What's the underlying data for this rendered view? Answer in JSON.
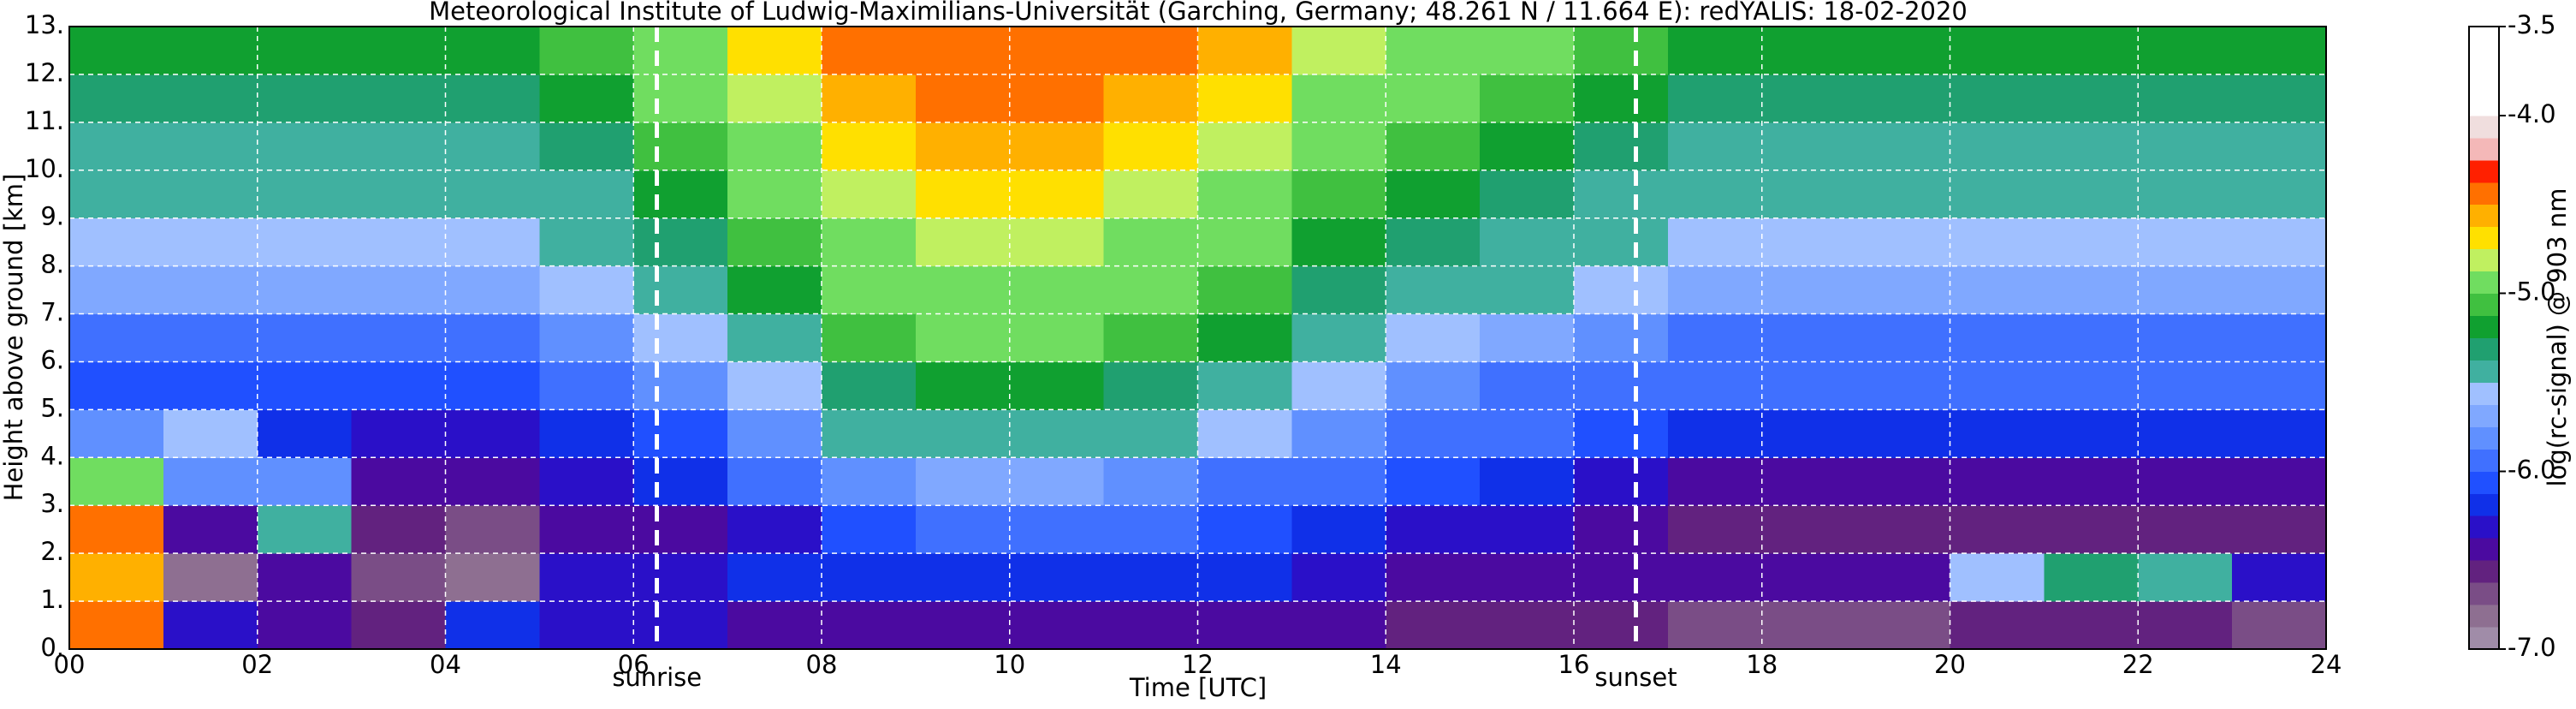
{
  "chart_data": {
    "type": "heatmap",
    "title": "Meteorological Institute of Ludwig-Maximilians-Universität (Garching, Germany; 48.261 N / 11.664 E):    redYALIS: 18-02-2020",
    "x_label": "Time [UTC]",
    "y_label": "Height above ground [km]",
    "xlim": [
      0,
      24
    ],
    "ylim": [
      0,
      13
    ],
    "xticks": [
      {
        "value": 0,
        "label": "00"
      },
      {
        "value": 2,
        "label": "02"
      },
      {
        "value": 4,
        "label": "04"
      },
      {
        "value": 6,
        "label": "06"
      },
      {
        "value": 8,
        "label": "08"
      },
      {
        "value": 10,
        "label": "10"
      },
      {
        "value": 12,
        "label": "12"
      },
      {
        "value": 14,
        "label": "14"
      },
      {
        "value": 16,
        "label": "16"
      },
      {
        "value": 18,
        "label": "18"
      },
      {
        "value": 20,
        "label": "20"
      },
      {
        "value": 22,
        "label": "22"
      },
      {
        "value": 24,
        "label": "24"
      }
    ],
    "yticks": [
      {
        "value": 0,
        "label": "0."
      },
      {
        "value": 1,
        "label": "1."
      },
      {
        "value": 2,
        "label": "2."
      },
      {
        "value": 3,
        "label": "3."
      },
      {
        "value": 4,
        "label": "4."
      },
      {
        "value": 5,
        "label": "5."
      },
      {
        "value": 6,
        "label": "6."
      },
      {
        "value": 7,
        "label": "7."
      },
      {
        "value": 8,
        "label": "8."
      },
      {
        "value": 9,
        "label": "9."
      },
      {
        "value": 10,
        "label": "10."
      },
      {
        "value": 11,
        "label": "11."
      },
      {
        "value": 12,
        "label": "12."
      },
      {
        "value": 13,
        "label": "13."
      }
    ],
    "grid": true,
    "z": [
      [
        -4.5,
        -6.3,
        -6.5,
        -6.6,
        -6.2,
        -6.3,
        -6.3,
        -6.4,
        -6.4,
        -6.4,
        -6.4,
        -6.4,
        -6.4,
        -6.5,
        -6.6,
        -6.6,
        -6.6,
        -6.7,
        -6.7,
        -6.7,
        -6.6,
        -6.6,
        -6.6,
        -6.7
      ],
      [
        -4.6,
        -6.8,
        -6.5,
        -6.7,
        -6.8,
        -6.3,
        -6.3,
        -6.2,
        -6.2,
        -6.2,
        -6.2,
        -6.2,
        -6.2,
        -6.3,
        -6.4,
        -6.4,
        -6.4,
        -6.5,
        -6.5,
        -6.5,
        -5.6,
        -5.3,
        -5.5,
        -6.3
      ],
      [
        -4.5,
        -6.5,
        -5.5,
        -6.6,
        -6.7,
        -6.5,
        -6.4,
        -6.3,
        -6.1,
        -6.0,
        -6.0,
        -6.0,
        -6.1,
        -6.2,
        -6.3,
        -6.3,
        -6.4,
        -6.6,
        -6.6,
        -6.6,
        -6.6,
        -6.6,
        -6.6,
        -6.6
      ],
      [
        -5.0,
        -5.8,
        -5.8,
        -6.4,
        -6.4,
        -6.3,
        -6.2,
        -6.0,
        -5.8,
        -5.7,
        -5.7,
        -5.8,
        -5.9,
        -6.0,
        -6.1,
        -6.2,
        -6.3,
        -6.4,
        -6.4,
        -6.4,
        -6.4,
        -6.4,
        -6.4,
        -6.4
      ],
      [
        -5.8,
        -5.6,
        -6.2,
        -6.3,
        -6.3,
        -6.2,
        -6.1,
        -5.8,
        -5.5,
        -5.4,
        -5.4,
        -5.5,
        -5.6,
        -5.8,
        -5.9,
        -6.0,
        -6.1,
        -6.2,
        -6.2,
        -6.2,
        -6.2,
        -6.2,
        -6.2,
        -6.2
      ],
      [
        -6.1,
        -6.1,
        -6.1,
        -6.1,
        -6.1,
        -6.0,
        -5.8,
        -5.6,
        -5.3,
        -5.2,
        -5.2,
        -5.3,
        -5.4,
        -5.6,
        -5.8,
        -5.9,
        -6.0,
        -6.0,
        -6.0,
        -6.0,
        -6.0,
        -6.0,
        -6.0,
        -6.0
      ],
      [
        -5.9,
        -5.9,
        -5.9,
        -5.9,
        -5.9,
        -5.8,
        -5.6,
        -5.4,
        -5.1,
        -5.0,
        -5.0,
        -5.1,
        -5.2,
        -5.4,
        -5.6,
        -5.7,
        -5.8,
        -5.9,
        -5.9,
        -5.9,
        -5.9,
        -5.9,
        -5.9,
        -5.9
      ],
      [
        -5.7,
        -5.7,
        -5.7,
        -5.7,
        -5.7,
        -5.6,
        -5.4,
        -5.2,
        -5.0,
        -4.9,
        -4.9,
        -5.0,
        -5.1,
        -5.3,
        -5.4,
        -5.5,
        -5.6,
        -5.7,
        -5.7,
        -5.7,
        -5.7,
        -5.7,
        -5.7,
        -5.7
      ],
      [
        -5.6,
        -5.6,
        -5.6,
        -5.6,
        -5.6,
        -5.5,
        -5.3,
        -5.1,
        -4.9,
        -4.8,
        -4.8,
        -4.9,
        -5.0,
        -5.2,
        -5.3,
        -5.4,
        -5.5,
        -5.6,
        -5.6,
        -5.6,
        -5.6,
        -5.6,
        -5.6,
        -5.6
      ],
      [
        -5.5,
        -5.5,
        -5.5,
        -5.5,
        -5.5,
        -5.4,
        -5.2,
        -5.0,
        -4.8,
        -4.7,
        -4.7,
        -4.8,
        -4.9,
        -5.1,
        -5.2,
        -5.3,
        -5.4,
        -5.5,
        -5.5,
        -5.5,
        -5.5,
        -5.5,
        -5.5,
        -5.5
      ],
      [
        -5.4,
        -5.4,
        -5.4,
        -5.4,
        -5.4,
        -5.3,
        -5.1,
        -4.9,
        -4.7,
        -4.6,
        -4.6,
        -4.7,
        -4.8,
        -5.0,
        -5.1,
        -5.2,
        -5.3,
        -5.4,
        -5.4,
        -5.4,
        -5.4,
        -5.4,
        -5.4,
        -5.4
      ],
      [
        -5.3,
        -5.3,
        -5.3,
        -5.3,
        -5.3,
        -5.2,
        -5.0,
        -4.8,
        -4.6,
        -4.5,
        -4.5,
        -4.6,
        -4.7,
        -4.9,
        -5.0,
        -5.1,
        -5.2,
        -5.3,
        -5.3,
        -5.3,
        -5.3,
        -5.3,
        -5.3,
        -5.3
      ],
      [
        -5.2,
        -5.2,
        -5.2,
        -5.2,
        -5.2,
        -5.1,
        -4.9,
        -4.7,
        -4.5,
        -4.4,
        -4.4,
        -4.5,
        -4.6,
        -4.8,
        -4.9,
        -5.0,
        -5.1,
        -5.2,
        -5.2,
        -5.2,
        -5.2,
        -5.2,
        -5.2,
        -5.2
      ]
    ],
    "colorbar_label": "log(rc-signal) @ 903 nm",
    "clim": [
      -7,
      -3.5
    ],
    "cticks": [
      {
        "value": -3.5,
        "label": "-3.5"
      },
      {
        "value": -4,
        "label": "-4.0"
      },
      {
        "value": -5,
        "label": "-5.0"
      },
      {
        "value": -6,
        "label": "-6.0"
      },
      {
        "value": -7,
        "label": "-7.0"
      }
    ],
    "colormap": [
      "#a08ca8",
      "#8e6f91",
      "#7a4d86",
      "#62227f",
      "#4b0aa0",
      "#2a10c8",
      "#1030e8",
      "#2050ff",
      "#4070ff",
      "#6090ff",
      "#80a8ff",
      "#a0c0ff",
      "#40b0a0",
      "#20a070",
      "#10a030",
      "#40c040",
      "#70dd60",
      "#c0f060",
      "#ffe000",
      "#ffb000",
      "#ff7000",
      "#ff2000",
      "#f4b8b8",
      "#f0dede",
      "#ffffff",
      "#ffffff",
      "#ffffff",
      "#ffffff"
    ],
    "annotations": [
      {
        "text": "sunrise",
        "x": 6.25
      },
      {
        "text": "sunset",
        "x": 16.66
      }
    ]
  }
}
